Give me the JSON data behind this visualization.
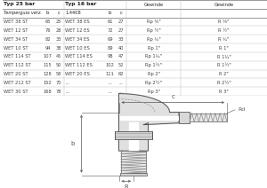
{
  "title_25bar": "Typ 25 bar",
  "subtitle_25bar": "Temperguss verz.",
  "title_16bar": "Typ 16 bar",
  "subtitle_16bar": "1.4408",
  "rows": [
    [
      "WET 38 ST",
      "65",
      "25",
      "WET 38 ES",
      "61",
      "27",
      "Rp ⅜\"",
      "R ⅜\""
    ],
    [
      "WET 12 ST",
      "76",
      "28",
      "WET 12 ES",
      "72",
      "27",
      "Rp ½\"",
      "R ½\""
    ],
    [
      "WET 34 ST",
      "82",
      "33",
      "WET 34 ES",
      "69",
      "33",
      "Rp ¾\"",
      "R ¾\""
    ],
    [
      "WET 10 ST",
      "94",
      "38",
      "WET 10 ES",
      "89",
      "40",
      "Rp 1\"",
      "R 1\""
    ],
    [
      "WET 114 ST",
      "107",
      "45",
      "WET 114 ES",
      "98",
      "47",
      "Rp 1¼\"",
      "R 1¼\""
    ],
    [
      "WET 112 ST",
      "115",
      "50",
      "WET 112 ES",
      "102",
      "52",
      "Rp 1½\"",
      "R 1½\""
    ],
    [
      "WET 20 ST",
      "128",
      "58",
      "WET 20 ES",
      "111",
      "62",
      "Rp 2\"",
      "R 2\""
    ],
    [
      "WET 212 ST",
      "152",
      "70",
      "...",
      "...",
      "...",
      "Rp 2½\"",
      "R 2½\""
    ],
    [
      "WET 30 ST",
      "168",
      "78",
      "...",
      "...",
      "...",
      "Rp 3\"",
      "R 3\""
    ]
  ],
  "bg_color": "#ffffff",
  "line_color": "#bbbbbb",
  "text_color": "#444444",
  "header_text_color": "#222222",
  "diagram_label_c": "c",
  "diagram_label_b": "b",
  "diagram_label_r": "R",
  "diagram_label_rd": "Rd"
}
